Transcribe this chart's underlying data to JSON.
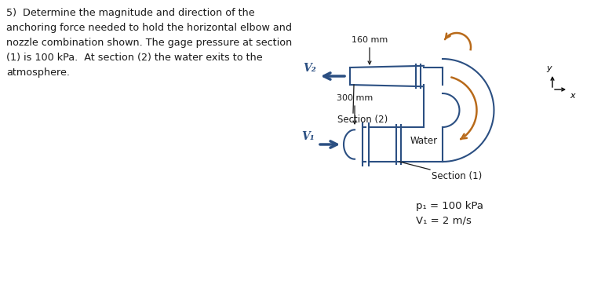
{
  "title_text": "5)  Determine the magnitude and direction of the\nanchoring force needed to hold the horizontal elbow and\nnozzle combination shown. The gage pressure at section\n(1) is 100 kPa.  At section (2) the water exits to the\natmosphere.",
  "pipe_color": "#2b4f82",
  "arrow_color": "#b86a1a",
  "text_color": "#1a1a1a",
  "label_color": "#2b4f82",
  "background": "#ffffff",
  "dim_160_label": "160 mm",
  "dim_300_label": "300 mm",
  "v1_label": "V₁",
  "v2_label": "V₂",
  "section1_label": "Section (1)",
  "section2_label": "Section (2)",
  "water_label": "Water",
  "p1_label": "p₁ = 100 kPa",
  "v1_val_label": "V₁ = 2 m/s",
  "font_size_text": 9.2,
  "font_size_labels": 8.5,
  "pipe_lw": 1.5
}
